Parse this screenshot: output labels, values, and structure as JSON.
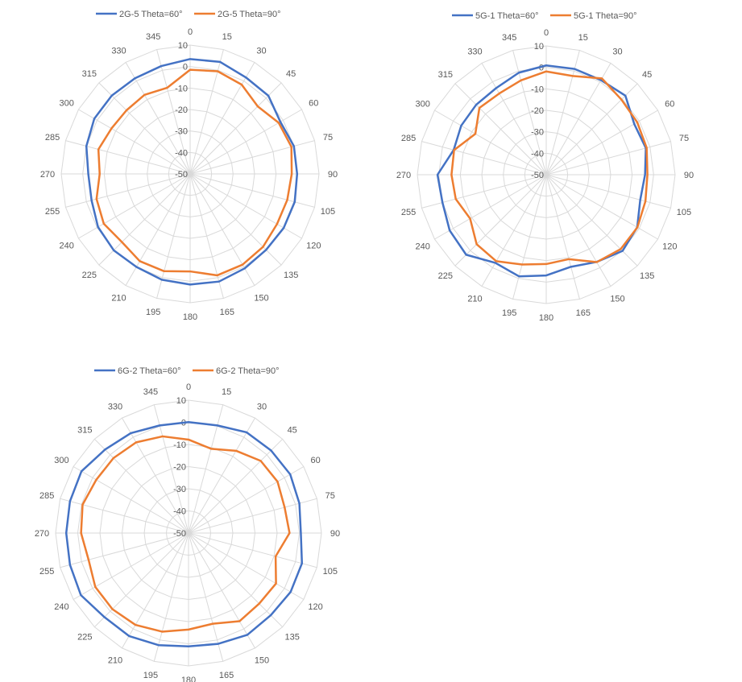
{
  "colors": {
    "series_a": "#4472C4",
    "series_b": "#ED7D31",
    "grid": "#D9D9D9",
    "text": "#595959"
  },
  "chart_data": [
    {
      "type": "radar",
      "categories": [
        "0",
        "15",
        "30",
        "45",
        "60",
        "75",
        "90",
        "105",
        "120",
        "135",
        "150",
        "165",
        "180",
        "195",
        "210",
        "225",
        "240",
        "255",
        "270",
        "285",
        "300",
        "315",
        "330",
        "345"
      ],
      "radial_ticks": [
        "-50",
        "-40",
        "-30",
        "-20",
        "-10",
        "0",
        "10"
      ],
      "rlim": [
        -50,
        10
      ],
      "legend_position": "top",
      "series": [
        {
          "name": "2G-5 Theta=60°",
          "values": [
            3.5,
            4,
            1.9,
            1.5,
            -1.5,
            0,
            -0.2,
            0.4,
            0.3,
            0,
            0.8,
            1.9,
            1.5,
            1,
            0,
            0.3,
            -0.5,
            -2.5,
            -2.6,
            0,
            1.5,
            1.6,
            1.4,
            2
          ]
        },
        {
          "name": "2G-5 Theta=90°",
          "values": [
            -1.5,
            -0.5,
            -2,
            -5.5,
            -2.4,
            -1.2,
            -2.7,
            -3.2,
            -3.3,
            -2,
            -1.2,
            -1.1,
            -4.6,
            -3.1,
            -3.1,
            -5.1,
            -3.6,
            -4.9,
            -7.9,
            -5.8,
            -7.7,
            -8.1,
            -7.5,
            -8.5
          ]
        }
      ]
    },
    {
      "type": "radar",
      "categories": [
        "0",
        "15",
        "30",
        "45",
        "60",
        "75",
        "90",
        "105",
        "120",
        "135",
        "150",
        "165",
        "180",
        "195",
        "210",
        "225",
        "240",
        "255",
        "270",
        "285",
        "300",
        "315",
        "330",
        "345"
      ],
      "radial_ticks": [
        "-50",
        "-40",
        "-30",
        "-20",
        "-10",
        "0",
        "10"
      ],
      "rlim": [
        -50,
        10
      ],
      "legend_position": "top",
      "series": [
        {
          "name": "5G-1 Theta=60°",
          "values": [
            0.9,
            1,
            0.9,
            2.1,
            -2.7,
            -2,
            -4,
            -4.7,
            -1.1,
            0.2,
            -3.1,
            -5.6,
            -3.1,
            -1,
            -2.6,
            2.7,
            1.9,
            0,
            0.6,
            -5.4,
            -4.3,
            -3.9,
            -3.4,
            -0.8
          ]
        },
        {
          "name": "5G-1 Theta=90°",
          "values": [
            -1.9,
            -2.4,
            1.8,
            -0.5,
            -1.1,
            -1.6,
            -2.9,
            -2.2,
            -1,
            -1,
            -3,
            -9.3,
            -8.4,
            -6.7,
            -3.5,
            -4.2,
            -9.1,
            -6.4,
            -5.9,
            -5.6,
            -11.9,
            -6,
            -6.3,
            -4.5
          ]
        }
      ]
    },
    {
      "type": "radar",
      "categories": [
        "0",
        "15",
        "30",
        "45",
        "60",
        "75",
        "90",
        "105",
        "120",
        "135",
        "150",
        "165",
        "180",
        "195",
        "210",
        "225",
        "240",
        "255",
        "270",
        "285",
        "300",
        "315",
        "330",
        "345"
      ],
      "radial_ticks": [
        "-50",
        "-40",
        "-30",
        "-20",
        "-10",
        "0",
        "10"
      ],
      "rlim": [
        -50,
        10
      ],
      "legend_position": "top",
      "series": [
        {
          "name": "6G-2 Theta=60°",
          "values": [
            0.1,
            0.3,
            2.5,
            2.7,
            3,
            1.8,
            0.7,
            3,
            3.2,
            2.5,
            3.1,
            1.8,
            1.2,
            2.4,
            3.7,
            3.7,
            6.1,
            5.4,
            5.2,
            5.4,
            5.8,
            3.3,
            2.1,
            0.3
          ]
        },
        {
          "name": "6G-2 Theta=90°",
          "values": [
            -7.8,
            -10.6,
            -7.1,
            -3.9,
            -3.6,
            -5.1,
            -4.4,
            -9.3,
            -4.4,
            -4.9,
            -4,
            -7.6,
            -6.4,
            -3.9,
            -2.1,
            -1.4,
            -1.4,
            -3.3,
            -1.5,
            -0.5,
            -1.9,
            -2.1,
            -2.7,
            -4.8
          ]
        }
      ]
    }
  ]
}
